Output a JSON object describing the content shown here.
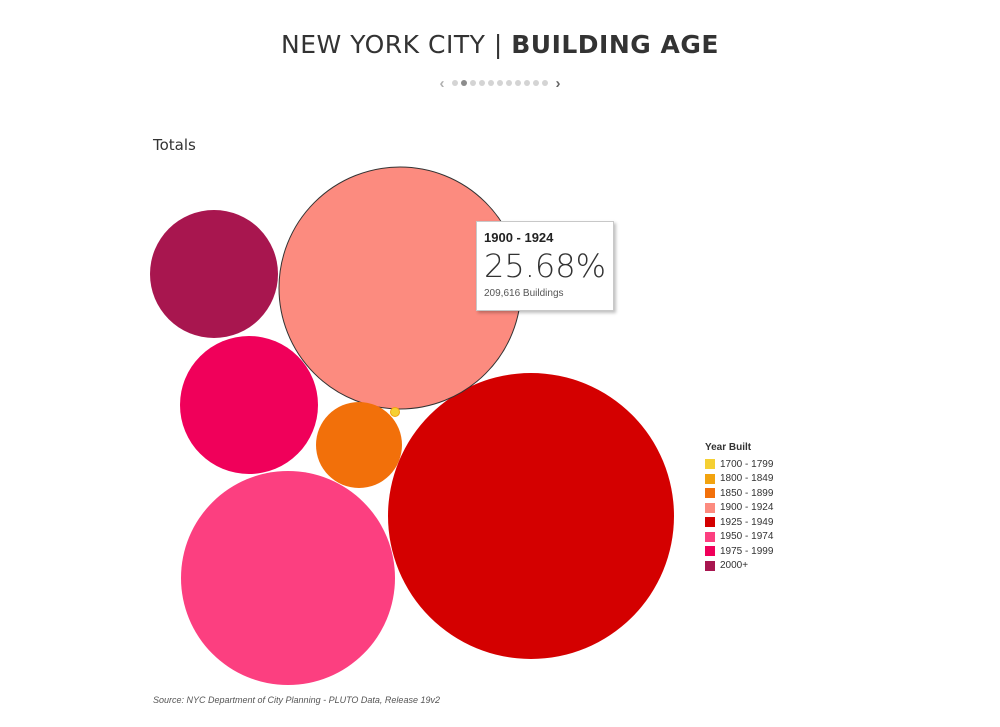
{
  "header": {
    "title_main": "NEW YORK CITY",
    "title_separator": "|",
    "title_bold": "BUILDING AGE"
  },
  "pager": {
    "prev_icon": "chevron-left-icon",
    "next_icon": "chevron-right-icon",
    "dot_count": 11,
    "active_index": 1
  },
  "section_label": "Totals",
  "tooltip": {
    "range": "1900 - 1924",
    "percent": "25.68%",
    "count_text": "209,616  Buildings"
  },
  "legend": {
    "title": "Year Built",
    "items": [
      {
        "label": "1700 - 1799",
        "color": "#f5d033"
      },
      {
        "label": "1800 - 1849",
        "color": "#f2a30f"
      },
      {
        "label": "1850 - 1899",
        "color": "#f2700a"
      },
      {
        "label": "1900 - 1924",
        "color": "#fc8b7f"
      },
      {
        "label": "1925 - 1949",
        "color": "#d40000"
      },
      {
        "label": "1950 - 1974",
        "color": "#fc3f80"
      },
      {
        "label": "1975 - 1999",
        "color": "#f0005a"
      },
      {
        "label": "2000+",
        "color": "#a8164f"
      }
    ]
  },
  "source": "Source: NYC Department of City Planning - PLUTO Data, Release 19v2",
  "chart_data": {
    "type": "bubble",
    "title": "",
    "highlighted": "1900 - 1924",
    "series": [
      {
        "name": "1700 - 1799",
        "share_pct": 0.01
      },
      {
        "name": "1800 - 1849",
        "share_pct": 0.03
      },
      {
        "name": "1850 - 1899",
        "share_pct": 2.1
      },
      {
        "name": "1900 - 1924",
        "share_pct": 25.68,
        "buildings": 209616
      },
      {
        "name": "1925 - 1949",
        "share_pct": 35.6
      },
      {
        "name": "1950 - 1974",
        "share_pct": 19.6
      },
      {
        "name": "1975 - 1999",
        "share_pct": 8.4
      },
      {
        "name": "2000+",
        "share_pct": 7.3
      }
    ]
  }
}
